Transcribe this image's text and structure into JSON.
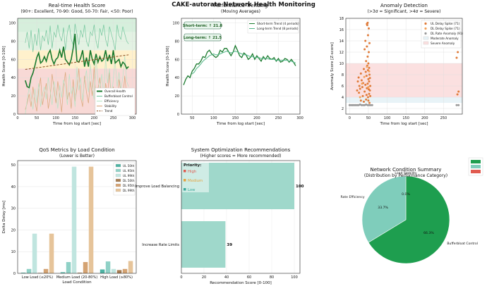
{
  "page": {
    "title": "CAKE-autorate Network Health Monitoring"
  },
  "chart_data": [
    {
      "id": "health",
      "type": "line",
      "title": "Real-time Health Score",
      "subtitle": "(90+: Excellent, 70-90: Good, 50-70: Fair, <50: Poor)",
      "xlabel": "Time from log start [sec]",
      "ylabel": "Health Score [0-100]",
      "xlim": [
        0,
        310
      ],
      "ylim": [
        0,
        105
      ],
      "xticks": [
        0,
        50,
        100,
        150,
        200,
        250,
        300
      ],
      "yticks": [
        0,
        20,
        40,
        60,
        80,
        100
      ],
      "bands": [
        {
          "from": 0,
          "to": 50,
          "color": "#f8d9d6"
        },
        {
          "from": 50,
          "to": 70,
          "color": "#fff1cc"
        },
        {
          "from": 70,
          "to": 90,
          "color": "#e3f2e3"
        },
        {
          "from": 90,
          "to": 105,
          "color": "#d6efdc"
        }
      ],
      "x": [
        20,
        25,
        30,
        35,
        40,
        45,
        50,
        55,
        60,
        65,
        70,
        75,
        80,
        85,
        90,
        95,
        100,
        105,
        110,
        115,
        120,
        125,
        130,
        135,
        140,
        145,
        150,
        155,
        160,
        165,
        170,
        175,
        180,
        185,
        190,
        195,
        200,
        205,
        210,
        215,
        220,
        225,
        230,
        235,
        240,
        245,
        250,
        255,
        260,
        265,
        270,
        275,
        280,
        285,
        290
      ],
      "series": [
        {
          "name": "Overall Health",
          "color": "#1a7a2e",
          "width": 1.6,
          "values": [
            37,
            30,
            29,
            40,
            45,
            53,
            62,
            67,
            56,
            58,
            63,
            58,
            66,
            70,
            60,
            55,
            60,
            62,
            70,
            62,
            74,
            60,
            57,
            54,
            60,
            72,
            88,
            58,
            57,
            62,
            70,
            52,
            62,
            52,
            70,
            60,
            55,
            66,
            57,
            63,
            58,
            60,
            70,
            58,
            65,
            55,
            70,
            56,
            58,
            60,
            52,
            57,
            55,
            50,
            52
          ]
        },
        {
          "name": "Bufferbloat Control",
          "color": "#74c69d",
          "width": 0.7,
          "values": [
            78,
            90,
            72,
            92,
            68,
            88,
            75,
            94,
            70,
            86,
            80,
            92,
            76,
            97,
            72,
            90,
            84,
            98,
            86,
            80,
            95,
            70,
            90,
            98,
            82,
            76,
            99,
            88,
            76,
            92,
            84,
            98,
            80,
            74,
            90,
            86,
            98,
            80,
            72,
            94,
            86,
            98,
            82,
            74,
            96,
            88,
            80,
            70,
            98,
            86,
            82,
            96,
            88,
            80,
            77
          ]
        },
        {
          "name": "Efficiency",
          "color": "#b7e4c7",
          "width": 0.7,
          "values": [
            0,
            15,
            30,
            20,
            5,
            28,
            12,
            34,
            8,
            22,
            30,
            16,
            40,
            26,
            10,
            36,
            24,
            6,
            32,
            18,
            38,
            28,
            10,
            44,
            22,
            30,
            8,
            52,
            26,
            40,
            14,
            36,
            48,
            24,
            55,
            30,
            16,
            60,
            38,
            26,
            44,
            20,
            62,
            34,
            50,
            18,
            38,
            58,
            30,
            46,
            26,
            40,
            64,
            36,
            30
          ]
        },
        {
          "name": "Stability",
          "color": "#d9a77a",
          "width": 0.7,
          "values": [
            5,
            12,
            22,
            8,
            30,
            14,
            3,
            26,
            40,
            10,
            22,
            34,
            6,
            18,
            44,
            28,
            12,
            36,
            20,
            2,
            30,
            46,
            16,
            24,
            6,
            38,
            14,
            28,
            50,
            18,
            8,
            42,
            24,
            12,
            36,
            20,
            52,
            10,
            28,
            40,
            16,
            4,
            34,
            22,
            46,
            12,
            30,
            18,
            6,
            38,
            24,
            14,
            42,
            20,
            10
          ]
        }
      ],
      "trend": {
        "name": "Trend",
        "color": "#8b4a1a",
        "from": [
          20,
          49
        ],
        "to": [
          290,
          65
        ]
      },
      "legend": [
        "Overall Health",
        "Bufferbloat Control",
        "Efficiency",
        "Stability",
        "Trend"
      ]
    },
    {
      "id": "perf",
      "type": "line",
      "title": "Performance Trending",
      "subtitle": "(Moving Averages)",
      "xlabel": "Time from log start [sec]",
      "ylabel": "Health Score [0-100]",
      "xlim": [
        25,
        300
      ],
      "ylim": [
        0,
        105
      ],
      "xticks": [
        50,
        100,
        150,
        200,
        250,
        300
      ],
      "yticks": [
        0,
        20,
        40,
        60,
        80,
        100
      ],
      "badges": [
        "Short-term: ↑ 21.8",
        "Long-term: ↑ 21.5"
      ],
      "x": [
        30,
        35,
        40,
        45,
        50,
        55,
        60,
        65,
        70,
        75,
        80,
        85,
        90,
        95,
        100,
        105,
        110,
        115,
        120,
        125,
        130,
        135,
        140,
        145,
        150,
        155,
        160,
        165,
        170,
        175,
        180,
        185,
        190,
        195,
        200,
        205,
        210,
        215,
        220,
        225,
        230,
        235,
        240,
        245,
        250,
        255,
        260,
        265,
        270,
        275,
        280,
        285,
        290
      ],
      "series": [
        {
          "name": "Short-term Trend (4 periods)",
          "color": "#1a7a2e",
          "width": 1.3,
          "values": [
            32,
            38,
            42,
            40,
            47,
            50,
            55,
            55,
            58,
            63,
            62,
            68,
            70,
            66,
            64,
            62,
            64,
            70,
            68,
            72,
            72,
            68,
            64,
            68,
            75,
            70,
            64,
            62,
            67,
            65,
            60,
            62,
            66,
            60,
            64,
            61,
            58,
            63,
            60,
            64,
            61,
            60,
            62,
            58,
            61,
            57,
            58,
            61,
            60,
            57,
            60,
            57,
            53
          ]
        },
        {
          "name": "Long-term Trend (8 periods)",
          "color": "#52b788",
          "width": 1.0,
          "values": [
            null,
            null,
            null,
            null,
            44,
            46,
            50,
            52,
            55,
            58,
            60,
            62,
            64,
            65,
            66,
            65,
            65,
            66,
            67,
            68,
            69,
            68,
            67,
            68,
            69,
            68,
            67,
            66,
            65,
            65,
            64,
            63,
            63,
            62,
            62,
            62,
            61,
            61,
            61,
            61,
            60,
            60,
            60,
            59,
            59,
            59,
            59,
            59,
            59,
            58,
            58,
            57,
            56
          ]
        }
      ],
      "legend": [
        "Short-term Trend (4 periods)",
        "Long-term Trend (8 periods)"
      ]
    },
    {
      "id": "anomaly",
      "type": "scatter",
      "title": "Anomaly Detection",
      "subtitle": "(>3σ = Significant, >4σ = Severe)",
      "xlabel": "Time from log start [sec]",
      "ylabel": "Anomaly Score [Z-score]",
      "xlim": [
        -10,
        300
      ],
      "ylim": [
        1,
        18
      ],
      "xticks": [
        0,
        50,
        100,
        150,
        200,
        250
      ],
      "yticks": [
        2,
        4,
        6,
        8,
        10,
        12,
        14,
        16,
        18
      ],
      "bands": [
        {
          "from": 3,
          "to": 4,
          "color": "#e8f3f7",
          "name": "Moderate Anomaly"
        },
        {
          "from": 4,
          "to": 10,
          "color": "#fbe0e0",
          "name": "Severe Anomaly"
        }
      ],
      "series": [
        {
          "name": "UL Delay Spike (71)",
          "color": "#e07b39",
          "points": [
            [
              20,
              5.2
            ],
            [
              22,
              6.8
            ],
            [
              24,
              7.5
            ],
            [
              25,
              4.8
            ],
            [
              26,
              6.0
            ],
            [
              28,
              5.5
            ],
            [
              30,
              8.2
            ],
            [
              30,
              3.4
            ],
            [
              32,
              7.0
            ],
            [
              34,
              5.8
            ],
            [
              35,
              4.2
            ],
            [
              36,
              6.5
            ],
            [
              38,
              9.0
            ],
            [
              38,
              3.2
            ],
            [
              40,
              5.0
            ],
            [
              40,
              12.5
            ],
            [
              42,
              6.2
            ],
            [
              42,
              14.0
            ],
            [
              43,
              8.5
            ],
            [
              44,
              10.4
            ],
            [
              44,
              3.6
            ],
            [
              45,
              4.4
            ],
            [
              45,
              7.8
            ],
            [
              46,
              5.6
            ],
            [
              46,
              13.0
            ],
            [
              47,
              9.6
            ],
            [
              47,
              16.8
            ],
            [
              48,
              6.4
            ],
            [
              48,
              11.2
            ],
            [
              48,
              17.2
            ],
            [
              49,
              4.0
            ],
            [
              49,
              8.8
            ],
            [
              49,
              15.0
            ],
            [
              50,
              7.2
            ],
            [
              50,
              3.4
            ],
            [
              50,
              10.0
            ],
            [
              51,
              5.4
            ],
            [
              51,
              12.0
            ],
            [
              51,
              16.2
            ],
            [
              52,
              6.8
            ],
            [
              52,
              9.2
            ],
            [
              52,
              4.6
            ],
            [
              53,
              8.0
            ],
            [
              53,
              13.6
            ],
            [
              53,
              3.0
            ],
            [
              54,
              5.2
            ],
            [
              54,
              7.4
            ],
            [
              55,
              6.0
            ],
            [
              55,
              4.2
            ],
            [
              46,
              17.0
            ],
            [
              285,
              11.0
            ],
            [
              287,
              4.5
            ],
            [
              288,
              12.0
            ],
            [
              290,
              5.0
            ]
          ]
        },
        {
          "name": "DL Delay Spike (71)",
          "color": "#f4a259",
          "points": [
            [
              28,
              4.0
            ],
            [
              33,
              6.4
            ],
            [
              39,
              7.6
            ],
            [
              46,
              9.4
            ],
            [
              50,
              5.8
            ],
            [
              52,
              8.6
            ]
          ]
        },
        {
          "name": "DL Rate Anomaly (91)",
          "color": "#999999",
          "points": [
            [
              0,
              2.6
            ],
            [
              4,
              2.6
            ],
            [
              8,
              2.6
            ],
            [
              12,
              2.6
            ],
            [
              16,
              2.6
            ],
            [
              20,
              2.6
            ],
            [
              24,
              2.6
            ],
            [
              28,
              2.7
            ],
            [
              32,
              2.6
            ],
            [
              36,
              2.6
            ],
            [
              40,
              2.6
            ],
            [
              44,
              2.7
            ],
            [
              48,
              2.6
            ],
            [
              52,
              2.6
            ],
            [
              56,
              2.6
            ],
            [
              60,
              2.6
            ],
            [
              285,
              2.6
            ],
            [
              290,
              2.6
            ]
          ]
        }
      ],
      "legend": [
        "UL Delay Spike (71)",
        "DL Delay Spike (71)",
        "DL Rate Anomaly (91)",
        "Moderate Anomaly",
        "Severe Anomaly"
      ]
    },
    {
      "id": "qos",
      "type": "bar",
      "title": "QoS Metrics by Load Condition",
      "subtitle": "(Lower is Better)",
      "xlabel": "Load Condition",
      "ylabel": "Delta Delay [ms]",
      "ylim": [
        0,
        52
      ],
      "yticks": [
        0,
        10,
        20,
        30,
        40,
        50
      ],
      "categories": [
        "Low Load (≤20%)",
        "Medium Load (20-80%)",
        "High Load (≥80%)"
      ],
      "series": [
        {
          "name": "UL 50th",
          "color": "#4db3a3",
          "values": [
            0.3,
            0.5,
            1.8
          ]
        },
        {
          "name": "UL 95th",
          "color": "#8fd1c6",
          "values": [
            2.0,
            5.2,
            5.5
          ]
        },
        {
          "name": "UL 99th",
          "color": "#c0e5df",
          "values": [
            18.3,
            49.2,
            2.0
          ]
        },
        {
          "name": "DL 50th",
          "color": "#a67c52",
          "values": [
            0.2,
            0.3,
            1.5
          ]
        },
        {
          "name": "DL 95th",
          "color": "#d4a373",
          "values": [
            2.0,
            5.2,
            2.0
          ]
        },
        {
          "name": "DL 99th",
          "color": "#e6c49a",
          "values": [
            18.3,
            49.2,
            5.7
          ]
        }
      ],
      "legend": [
        "UL 50th",
        "UL 95th",
        "UL 99th",
        "DL 50th",
        "DL 95th",
        "DL 99th"
      ]
    },
    {
      "id": "recs",
      "type": "bar",
      "orientation": "horizontal",
      "title": "System Optimization Recommendations",
      "subtitle": "(Higher scores = More recommended)",
      "xlabel": "Recommendation Score [0-100]",
      "xlim": [
        0,
        105
      ],
      "xticks": [
        0,
        20,
        40,
        60,
        80,
        100
      ],
      "categories": [
        "Improve Load Balancing",
        "Increase Rate Limits"
      ],
      "values": [
        100,
        39
      ],
      "color": "#9fd8cb",
      "priority_legend": {
        "title": "Priority:",
        "items": [
          {
            "label": "High",
            "color": "#e05a4f"
          },
          {
            "label": "Medium",
            "color": "#e6a23c"
          },
          {
            "label": "Low",
            "color": "#3aa89a"
          }
        ]
      }
    },
    {
      "id": "summary",
      "type": "pie",
      "title": "Network Condition Summary",
      "subtitle": "(Distribution by Performance Category)",
      "labels": [
        "Bufferbloat Control",
        "Rate Efficiency",
        "Load Stability"
      ],
      "values": [
        66.3,
        33.7,
        0.0
      ],
      "pct_labels": [
        "66.3%",
        "33.7%",
        "0.0%"
      ],
      "colors": [
        "#1e9e4f",
        "#7fcdbb",
        "#e05a4f"
      ],
      "legend_colors": [
        "#1e9e4f",
        "#7fcdbb",
        "#e05a4f"
      ]
    }
  ]
}
